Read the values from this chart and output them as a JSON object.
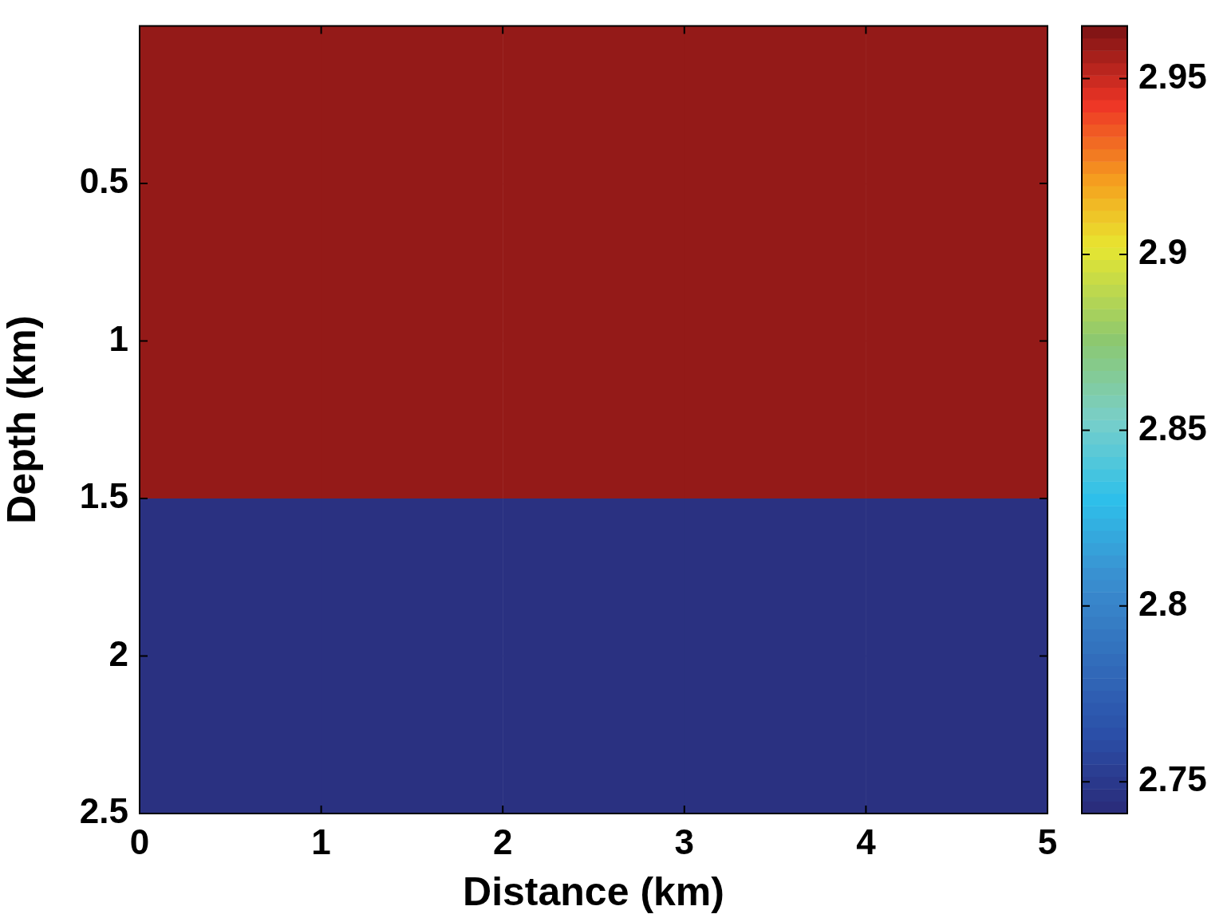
{
  "chart_data": {
    "type": "heatmap",
    "xlabel": "Distance (km)",
    "ylabel": "Depth (km)",
    "x": [
      0.5,
      1.5,
      2.5,
      3.5,
      4.5
    ],
    "xlim": [
      0,
      5
    ],
    "xticks": [
      0,
      1,
      2,
      3,
      4,
      5
    ],
    "ylim": [
      2.5,
      0
    ],
    "yticks": [
      0.5,
      1,
      1.5,
      2,
      2.5
    ],
    "cells": [
      [
        2.96,
        2.96,
        2.96,
        2.96,
        2.96
      ],
      [
        2.96,
        2.96,
        2.96,
        2.96,
        2.96
      ],
      [
        2.96,
        2.96,
        2.96,
        2.96,
        2.96
      ],
      [
        2.745,
        2.745,
        2.745,
        2.745,
        2.745
      ],
      [
        2.745,
        2.745,
        2.745,
        2.745,
        2.745
      ]
    ],
    "clim": [
      2.741,
      2.965
    ],
    "cticks": [
      2.75,
      2.8,
      2.85,
      2.9,
      2.95
    ]
  }
}
